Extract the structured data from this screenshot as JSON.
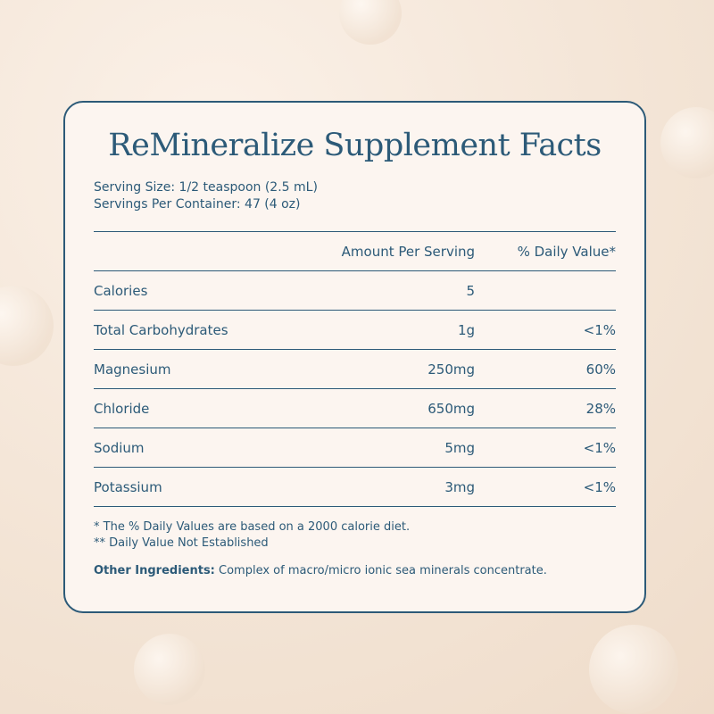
{
  "title": "ReMineralize Supplement Facts",
  "serving": [
    "Serving Size: 1/2 teaspoon (2.5 mL)",
    "Servings Per Container: 47 (4 oz)"
  ],
  "table": {
    "header": [
      "Amount Per Serving",
      "% Daily Value*"
    ],
    "rows": [
      [
        "Calories",
        "5",
        ""
      ],
      [
        "Total Carbohydrates",
        "1g",
        "<1%"
      ],
      [
        "Magnesium",
        "250mg",
        "60%"
      ],
      [
        "Chloride",
        "650mg",
        "28%"
      ],
      [
        "Sodium",
        "5mg",
        "<1%"
      ],
      [
        "Potassium",
        "3mg",
        "<1%"
      ]
    ]
  },
  "notes": [
    "* The % Daily Values are based on a 2000 calorie diet.",
    "** Daily Value Not Established"
  ],
  "ingredients": {
    "label": "Other Ingredients:",
    "text": "Complex of macro/micro ionic sea minerals concentrate."
  }
}
